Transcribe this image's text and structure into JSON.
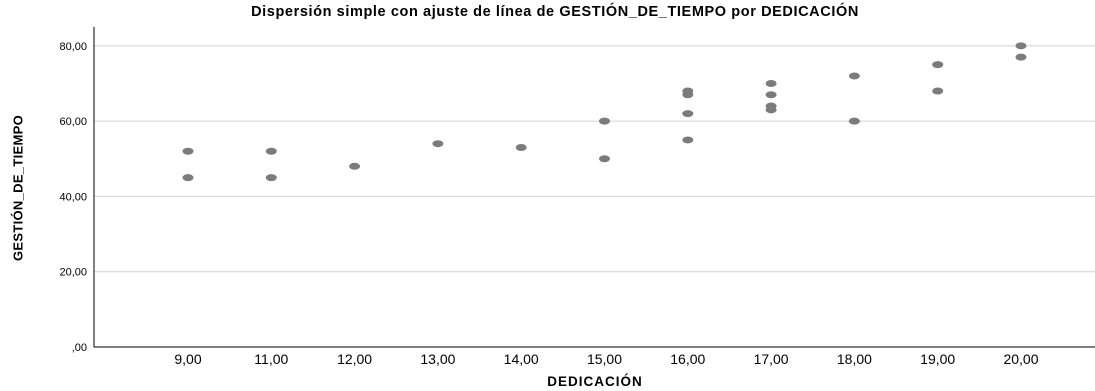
{
  "chart_data": {
    "type": "scatter",
    "title": "Dispersión simple con ajuste de línea de GESTIÓN_DE_TIEMPO por DEDICACIÓN",
    "xlabel": "DEDICACIÓN",
    "ylabel": "GESTIÓN_DE_TIEMPO",
    "categories": [
      "9,00",
      "11,00",
      "12,00",
      "13,00",
      "14,00",
      "15,00",
      "16,00",
      "17,00",
      "18,00",
      "19,00",
      "20,00"
    ],
    "y_ticks": [
      ",00",
      "20,00",
      "40,00",
      "60,00",
      "80,00"
    ],
    "y_tick_values": [
      0,
      20,
      40,
      60,
      80
    ],
    "ylim": [
      0,
      85
    ],
    "grid": "horizontal",
    "marker_color": "#7b7b7b",
    "gridline_color": "#d4d4d4",
    "points": [
      {
        "x": "9,00",
        "y": 52
      },
      {
        "x": "9,00",
        "y": 45
      },
      {
        "x": "11,00",
        "y": 52
      },
      {
        "x": "11,00",
        "y": 45
      },
      {
        "x": "12,00",
        "y": 48
      },
      {
        "x": "13,00",
        "y": 54
      },
      {
        "x": "14,00",
        "y": 53
      },
      {
        "x": "15,00",
        "y": 60
      },
      {
        "x": "15,00",
        "y": 50
      },
      {
        "x": "16,00",
        "y": 68
      },
      {
        "x": "16,00",
        "y": 67
      },
      {
        "x": "16,00",
        "y": 62
      },
      {
        "x": "16,00",
        "y": 55
      },
      {
        "x": "17,00",
        "y": 70
      },
      {
        "x": "17,00",
        "y": 67
      },
      {
        "x": "17,00",
        "y": 64
      },
      {
        "x": "17,00",
        "y": 63
      },
      {
        "x": "18,00",
        "y": 72
      },
      {
        "x": "18,00",
        "y": 60
      },
      {
        "x": "19,00",
        "y": 75
      },
      {
        "x": "19,00",
        "y": 68
      },
      {
        "x": "20,00",
        "y": 80
      },
      {
        "x": "20,00",
        "y": 77
      }
    ]
  }
}
